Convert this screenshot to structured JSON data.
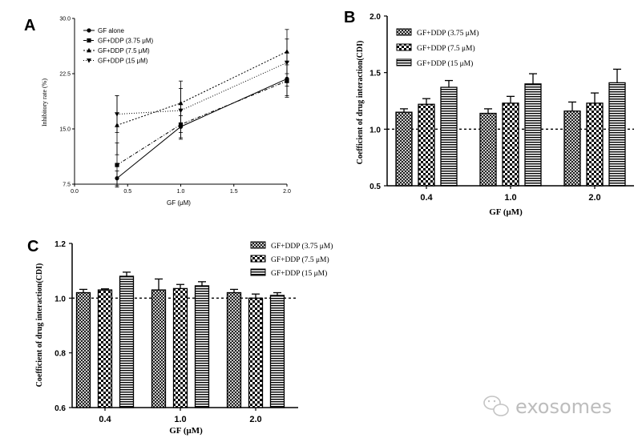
{
  "watermark": "exosomes",
  "chart_data": [
    {
      "panel": "A",
      "type": "line",
      "xlabel": "GF (μM)",
      "ylabel": "Inhibitory rate (%)",
      "xlim": [
        0.0,
        2.0
      ],
      "ylim": [
        7.5,
        30.0
      ],
      "xticks": [
        "0.0",
        "0.5",
        "1.0",
        "1.5",
        "2.0"
      ],
      "yticks": [
        "7.5",
        "15.0",
        "22.5",
        "30.0"
      ],
      "x": [
        0.4,
        1.0,
        2.0
      ],
      "series": [
        {
          "name": "GF alone",
          "marker": "circle",
          "dash": "",
          "values": [
            8.3,
            15.3,
            21.8
          ],
          "errors": [
            1.0,
            1.5,
            2.3
          ]
        },
        {
          "name": "GF+DDP (3.75 μM)",
          "marker": "square",
          "dash": "4 2 1 2",
          "values": [
            10.1,
            15.6,
            21.5
          ],
          "errors": [
            3.0,
            2.0,
            2.2
          ]
        },
        {
          "name": "GF+DDP (7.5 μM)",
          "marker": "triangle-up",
          "dash": "2 2",
          "values": [
            15.5,
            18.5,
            25.5
          ],
          "errors": [
            4.0,
            3.0,
            3.0
          ]
        },
        {
          "name": "GF+DDP (15 μM)",
          "marker": "triangle-down",
          "dash": "1 2",
          "values": [
            17.0,
            17.5,
            24.0
          ],
          "errors": [
            2.5,
            3.0,
            3.2
          ]
        }
      ]
    },
    {
      "panel": "B",
      "type": "bar",
      "xlabel": "GF (μM)",
      "ylabel": "Coefficient of drug interaction(CDI)",
      "ylim": [
        0.5,
        2.0
      ],
      "yticks": [
        "0.5",
        "1.0",
        "1.5",
        "2.0"
      ],
      "reference_line": 1.0,
      "categories": [
        "0.4",
        "1.0",
        "2.0"
      ],
      "series": [
        {
          "name": "GF+DDP (3.75 μM)",
          "pattern": "crosshatch",
          "values": [
            1.15,
            1.14,
            1.16
          ],
          "errors": [
            0.03,
            0.04,
            0.08
          ]
        },
        {
          "name": "GF+DDP (7.5 μM)",
          "pattern": "checker",
          "values": [
            1.22,
            1.23,
            1.23
          ],
          "errors": [
            0.05,
            0.06,
            0.09
          ]
        },
        {
          "name": "GF+DDP (15 μM)",
          "pattern": "hstripes",
          "values": [
            1.37,
            1.4,
            1.41
          ],
          "errors": [
            0.06,
            0.09,
            0.12
          ]
        }
      ]
    },
    {
      "panel": "C",
      "type": "bar",
      "xlabel": "GF (μM)",
      "ylabel": "Coefficient of drug interaction(CDI)",
      "ylim": [
        0.6,
        1.2
      ],
      "yticks": [
        "0.6",
        "0.8",
        "1.0",
        "1.2"
      ],
      "reference_line": 1.0,
      "categories": [
        "0.4",
        "1.0",
        "2.0"
      ],
      "series": [
        {
          "name": "GF+DDP (3.75 μM)",
          "pattern": "crosshatch",
          "values": [
            1.02,
            1.03,
            1.02
          ],
          "errors": [
            0.012,
            0.04,
            0.012
          ]
        },
        {
          "name": "GF+DDP (7.5 μM)",
          "pattern": "checker",
          "values": [
            1.03,
            1.035,
            1.0
          ],
          "errors": [
            0.004,
            0.015,
            0.015
          ]
        },
        {
          "name": "GF+DDP (15 μM)",
          "pattern": "hstripes",
          "values": [
            1.08,
            1.045,
            1.01
          ],
          "errors": [
            0.015,
            0.015,
            0.01
          ]
        }
      ]
    }
  ]
}
